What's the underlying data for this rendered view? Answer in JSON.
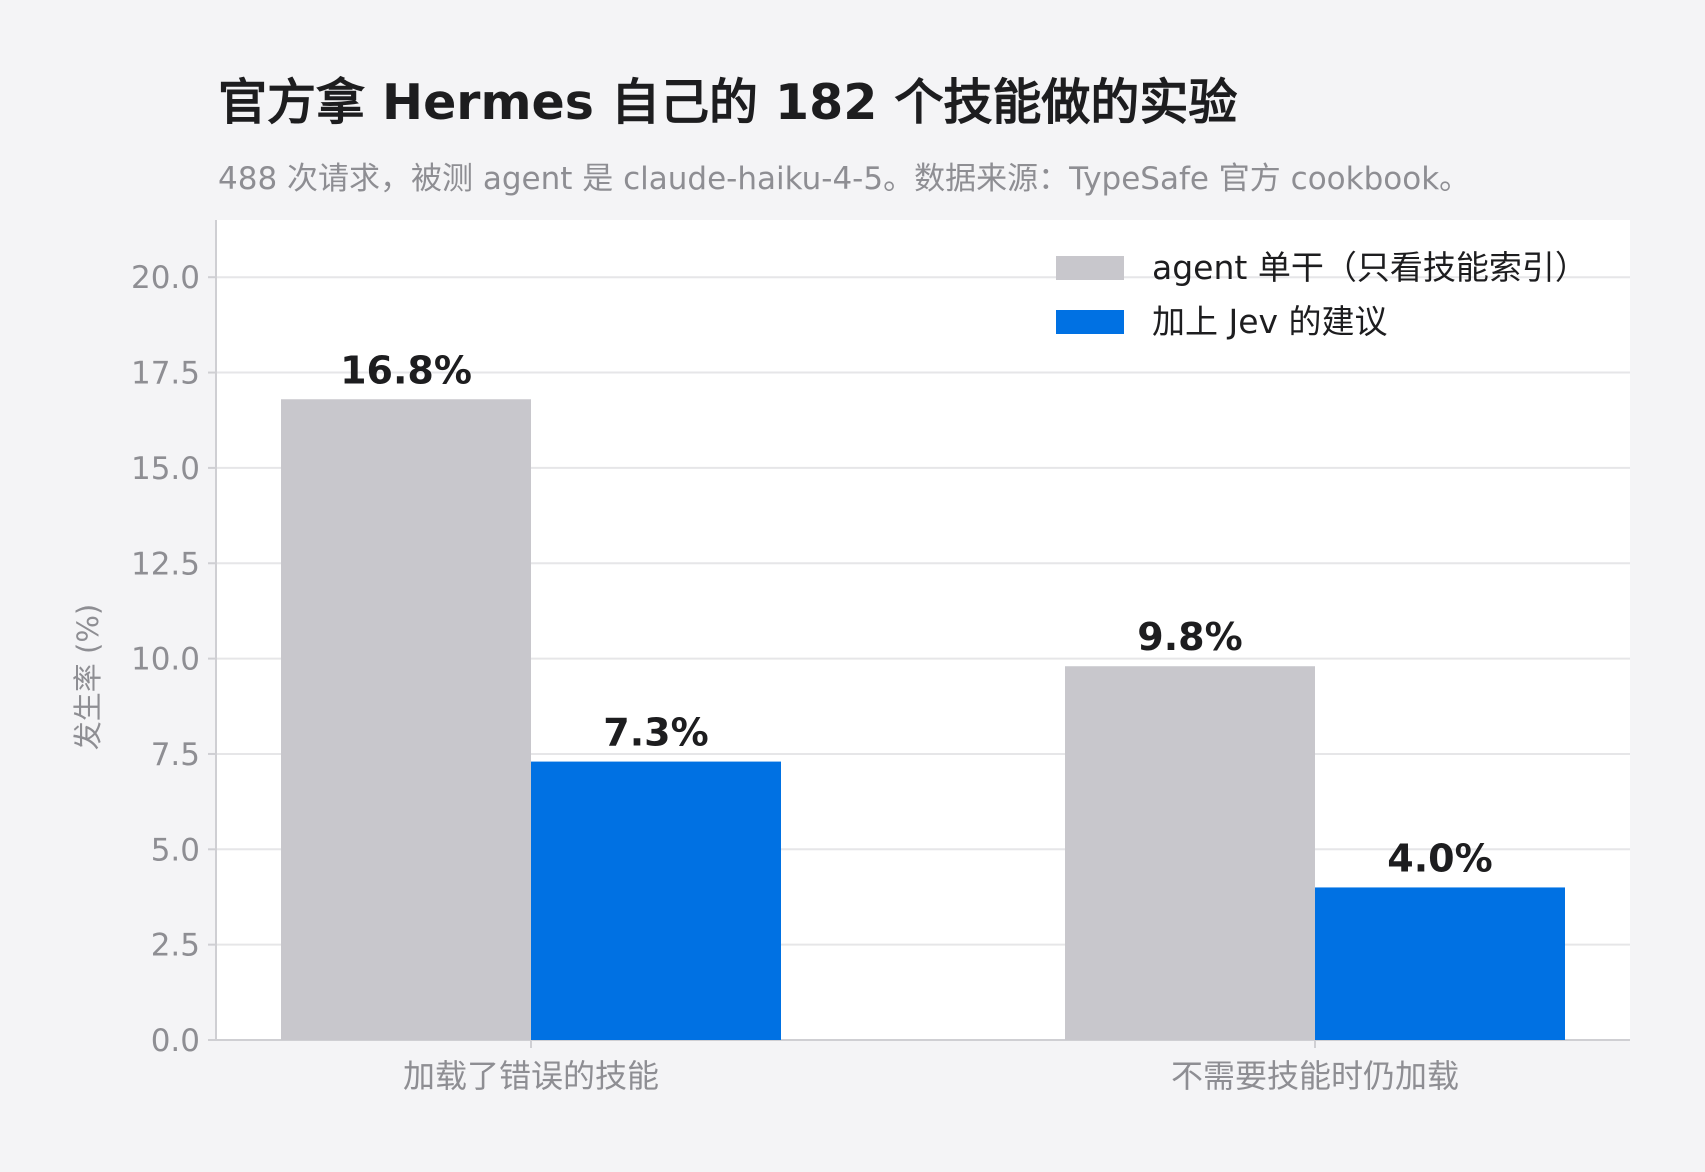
{
  "chart_data": {
    "type": "bar",
    "title": "官方拿 Hermes 自己的 182 个技能做的实验",
    "subtitle": "488 次请求，被测 agent 是 claude-haiku-4-5。数据来源：TypeSafe 官方 cookbook。",
    "xlabel": "",
    "ylabel": "发生率 (%)",
    "categories": [
      "加载了错误的技能",
      "不需要技能时仍加载"
    ],
    "series": [
      {
        "name": "agent 单干（只看技能索引）",
        "values": [
          16.8,
          9.8
        ],
        "labels": [
          "16.8%",
          "9.8%"
        ],
        "color": "#c8c7cc"
      },
      {
        "name": "加上 Jev 的建议",
        "values": [
          7.3,
          4.0
        ],
        "labels": [
          "7.3%",
          "4.0%"
        ],
        "color": "#0071e3"
      }
    ],
    "ylim": [
      0,
      21.5
    ],
    "yticks": [
      "0.0",
      "2.5",
      "5.0",
      "7.5",
      "10.0",
      "12.5",
      "15.0",
      "17.5",
      "20.0"
    ],
    "grid": true,
    "legend": "top-right",
    "colors": {
      "background": "#f4f4f6",
      "plot_background": "#ffffff",
      "grid": "#e6e6e8",
      "axis": "#cfcfd3",
      "title": "#1d1d1f",
      "muted": "#8e8e93",
      "bar_label": "#1d1d1f"
    }
  }
}
